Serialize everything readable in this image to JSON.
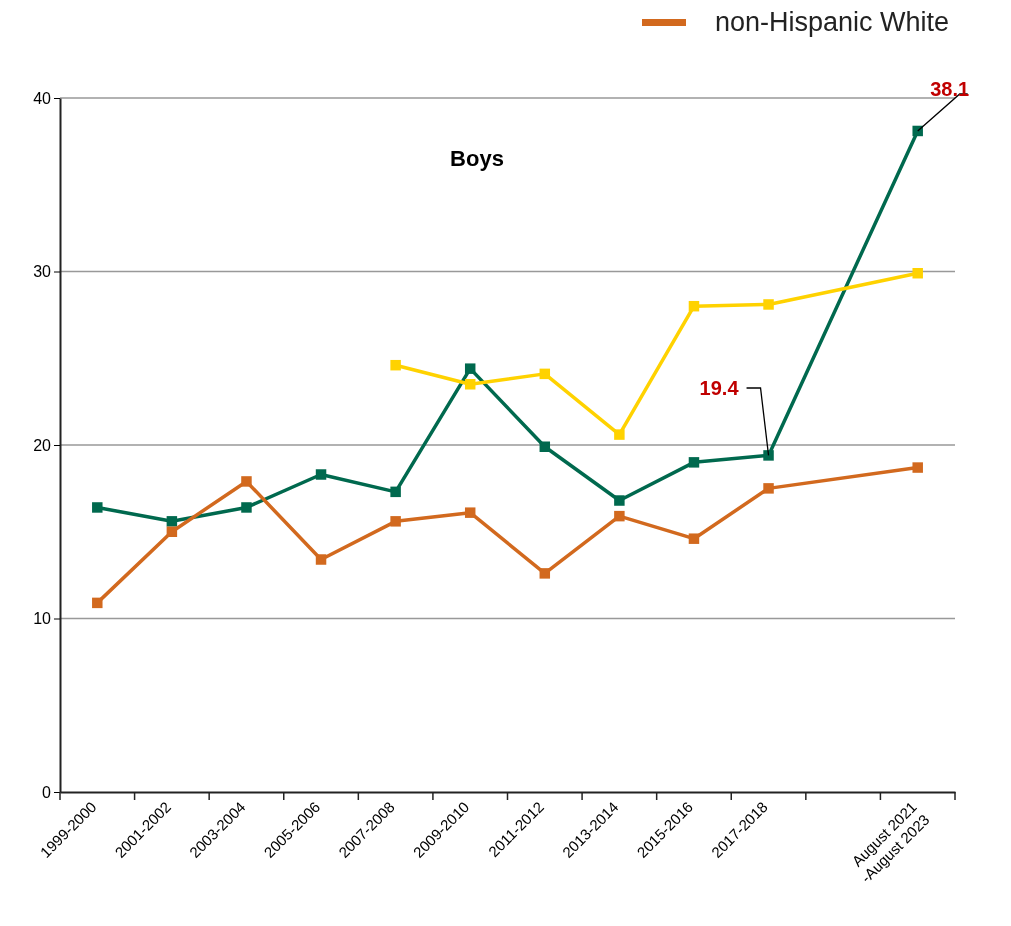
{
  "chart_data": {
    "type": "line",
    "title": "Boys",
    "categories": [
      "1999-2000",
      "2001-2002",
      "2003-2004",
      "2005-2006",
      "2007-2008",
      "2009-2010",
      "2011-2012",
      "2013-2014",
      "2015-2016",
      "2017-2018",
      null,
      "August 2021\n-August 2023"
    ],
    "series": [
      {
        "color": "#00694e",
        "values": [
          16.4,
          15.6,
          16.4,
          18.3,
          17.3,
          24.4,
          19.9,
          16.8,
          19.0,
          19.4,
          null,
          38.1
        ],
        "value_labels": [
          null,
          null,
          null,
          null,
          null,
          null,
          null,
          null,
          null,
          "19.4",
          null,
          "38.1"
        ]
      },
      {
        "name": "non-Hispanic White",
        "color": "#d2691e",
        "values": [
          10.9,
          15.0,
          17.9,
          13.4,
          15.6,
          16.1,
          12.6,
          15.9,
          14.6,
          17.5,
          null,
          18.7
        ]
      },
      {
        "color": "#ffd200",
        "values": [
          null,
          null,
          null,
          null,
          24.6,
          23.5,
          24.1,
          20.6,
          28.0,
          28.1,
          null,
          29.9
        ]
      }
    ],
    "ylim": [
      0,
      40
    ],
    "yticks": [
      0,
      10,
      20,
      30,
      40
    ],
    "grid": "y",
    "legend": "top right",
    "marker": "square",
    "line_style": "solid"
  }
}
